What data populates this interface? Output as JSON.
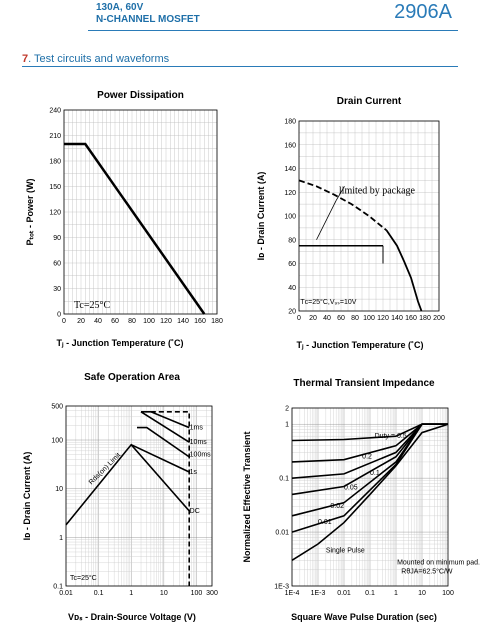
{
  "header": {
    "line1": "130A,  60V",
    "line2": "N-CHANNEL MOSFET",
    "part_number": "2906A"
  },
  "section": {
    "number": "7",
    "title": ". Test circuits and waveforms"
  },
  "colors": {
    "accent": "#2a7bb8",
    "section_number": "#c0392b"
  },
  "chart_data": [
    {
      "type": "line",
      "title": "Power Dissipation",
      "xlabel": "Tⱼ - Junction Temperature (˚C)",
      "ylabel": "Pₜₒₜ - Power (W)",
      "xlim": [
        0,
        180
      ],
      "ylim": [
        0,
        240
      ],
      "xticks": [
        0,
        20,
        40,
        60,
        80,
        100,
        120,
        140,
        160,
        180
      ],
      "yticks": [
        0,
        30,
        60,
        90,
        120,
        150,
        180,
        210,
        240
      ],
      "grid": true,
      "annotations": [
        "Tc=25°C"
      ],
      "series": [
        {
          "x": [
            0,
            25,
            165
          ],
          "y": [
            200,
            200,
            0
          ]
        }
      ]
    },
    {
      "type": "line",
      "title": "Drain Current",
      "xlabel": "Tⱼ - Junction Temperature (˚C)",
      "ylabel": "Iᴅ - Drain Current (A)",
      "xlim": [
        0,
        200
      ],
      "ylim": [
        20,
        180
      ],
      "xticks": [
        0,
        20,
        40,
        60,
        80,
        100,
        120,
        140,
        160,
        180,
        200
      ],
      "yticks": [
        20,
        40,
        60,
        80,
        100,
        120,
        140,
        160,
        180
      ],
      "grid": true,
      "annotations": [
        "limited by package",
        "Tᴄ=25°C,V₉ₛ=10V"
      ],
      "series": [
        {
          "x": [
            0,
            120
          ],
          "y": [
            75,
            75
          ]
        },
        {
          "x": [
            0,
            25,
            50,
            75,
            100,
            125,
            140,
            150,
            160,
            165,
            170,
            175
          ],
          "y": [
            130,
            125,
            118,
            110,
            100,
            88,
            75,
            62,
            48,
            38,
            28,
            20
          ],
          "dashed_until": 125
        }
      ]
    },
    {
      "type": "line",
      "title": "Safe Operation Area",
      "xlabel": "Vᴅₛ - Drain-Source Voltage (V)",
      "ylabel": "Iᴅ - Drain Current (A)",
      "x_scale": "log",
      "y_scale": "log",
      "xlim": [
        0.01,
        300
      ],
      "ylim": [
        0.1,
        500
      ],
      "xticks": [
        "0.01",
        "0.1",
        "1",
        "10",
        "100",
        "300"
      ],
      "yticks": [
        "0.1",
        "1",
        "10",
        "100",
        "500"
      ],
      "grid": true,
      "annotations": [
        "Rds(on) Limit",
        "Tc=25°C"
      ],
      "series": [
        {
          "name": "1ms",
          "x": [
            2,
            4,
            60
          ],
          "y": [
            380,
            380,
            180
          ]
        },
        {
          "name": "10ms",
          "x": [
            2,
            60
          ],
          "y": [
            380,
            90
          ]
        },
        {
          "name": "100ms",
          "x": [
            1.5,
            3,
            60
          ],
          "y": [
            180,
            180,
            45
          ]
        },
        {
          "name": "1s",
          "x": [
            1,
            60
          ],
          "y": [
            80,
            22
          ]
        },
        {
          "name": "DC",
          "x": [
            0.01,
            1,
            60
          ],
          "y": [
            1.8,
            80,
            3.5
          ]
        }
      ],
      "labels": [
        "1ms",
        "10ms",
        "100ms",
        "1s",
        "DC"
      ]
    },
    {
      "type": "line",
      "title": "Thermal Transient Impedance",
      "xlabel": "Square Wave Pulse Duration (sec)",
      "ylabel": "Normalized Effective Transient",
      "x_scale": "log",
      "y_scale": "log",
      "xlim": [
        0.0001,
        100
      ],
      "ylim": [
        0.001,
        2
      ],
      "xticks": [
        "1E-4",
        "1E-3",
        "0.01",
        "0.1",
        "1",
        "10",
        "100"
      ],
      "yticks": [
        "1E-3",
        "0.01",
        "0.1",
        "1",
        "2"
      ],
      "grid": true,
      "annotations": [
        "Mounted on minimum pad.",
        "RθJA=62.5°C/W"
      ],
      "series": [
        {
          "name": "Duty = 0.5",
          "x": [
            0.0001,
            0.01,
            1,
            10,
            100
          ],
          "y": [
            0.5,
            0.52,
            0.6,
            1,
            1
          ]
        },
        {
          "name": "0.2",
          "x": [
            0.0001,
            0.01,
            1,
            10,
            100
          ],
          "y": [
            0.2,
            0.22,
            0.4,
            1,
            1
          ]
        },
        {
          "name": "0.1",
          "x": [
            0.0001,
            0.01,
            1,
            10,
            100
          ],
          "y": [
            0.1,
            0.12,
            0.3,
            1,
            1
          ]
        },
        {
          "name": "0.05",
          "x": [
            0.0001,
            0.01,
            1,
            10,
            100
          ],
          "y": [
            0.05,
            0.07,
            0.25,
            1,
            1
          ]
        },
        {
          "name": "0.02",
          "x": [
            0.0001,
            0.01,
            1,
            10,
            100
          ],
          "y": [
            0.02,
            0.035,
            0.2,
            1,
            1
          ]
        },
        {
          "name": "0.01",
          "x": [
            0.0001,
            0.01,
            1,
            10,
            100
          ],
          "y": [
            0.01,
            0.02,
            0.18,
            1,
            1
          ]
        },
        {
          "name": "Single Pulse",
          "x": [
            0.0001,
            0.001,
            0.01,
            0.1,
            1,
            10,
            100
          ],
          "y": [
            0.003,
            0.006,
            0.015,
            0.05,
            0.17,
            0.7,
            1
          ]
        }
      ]
    }
  ]
}
